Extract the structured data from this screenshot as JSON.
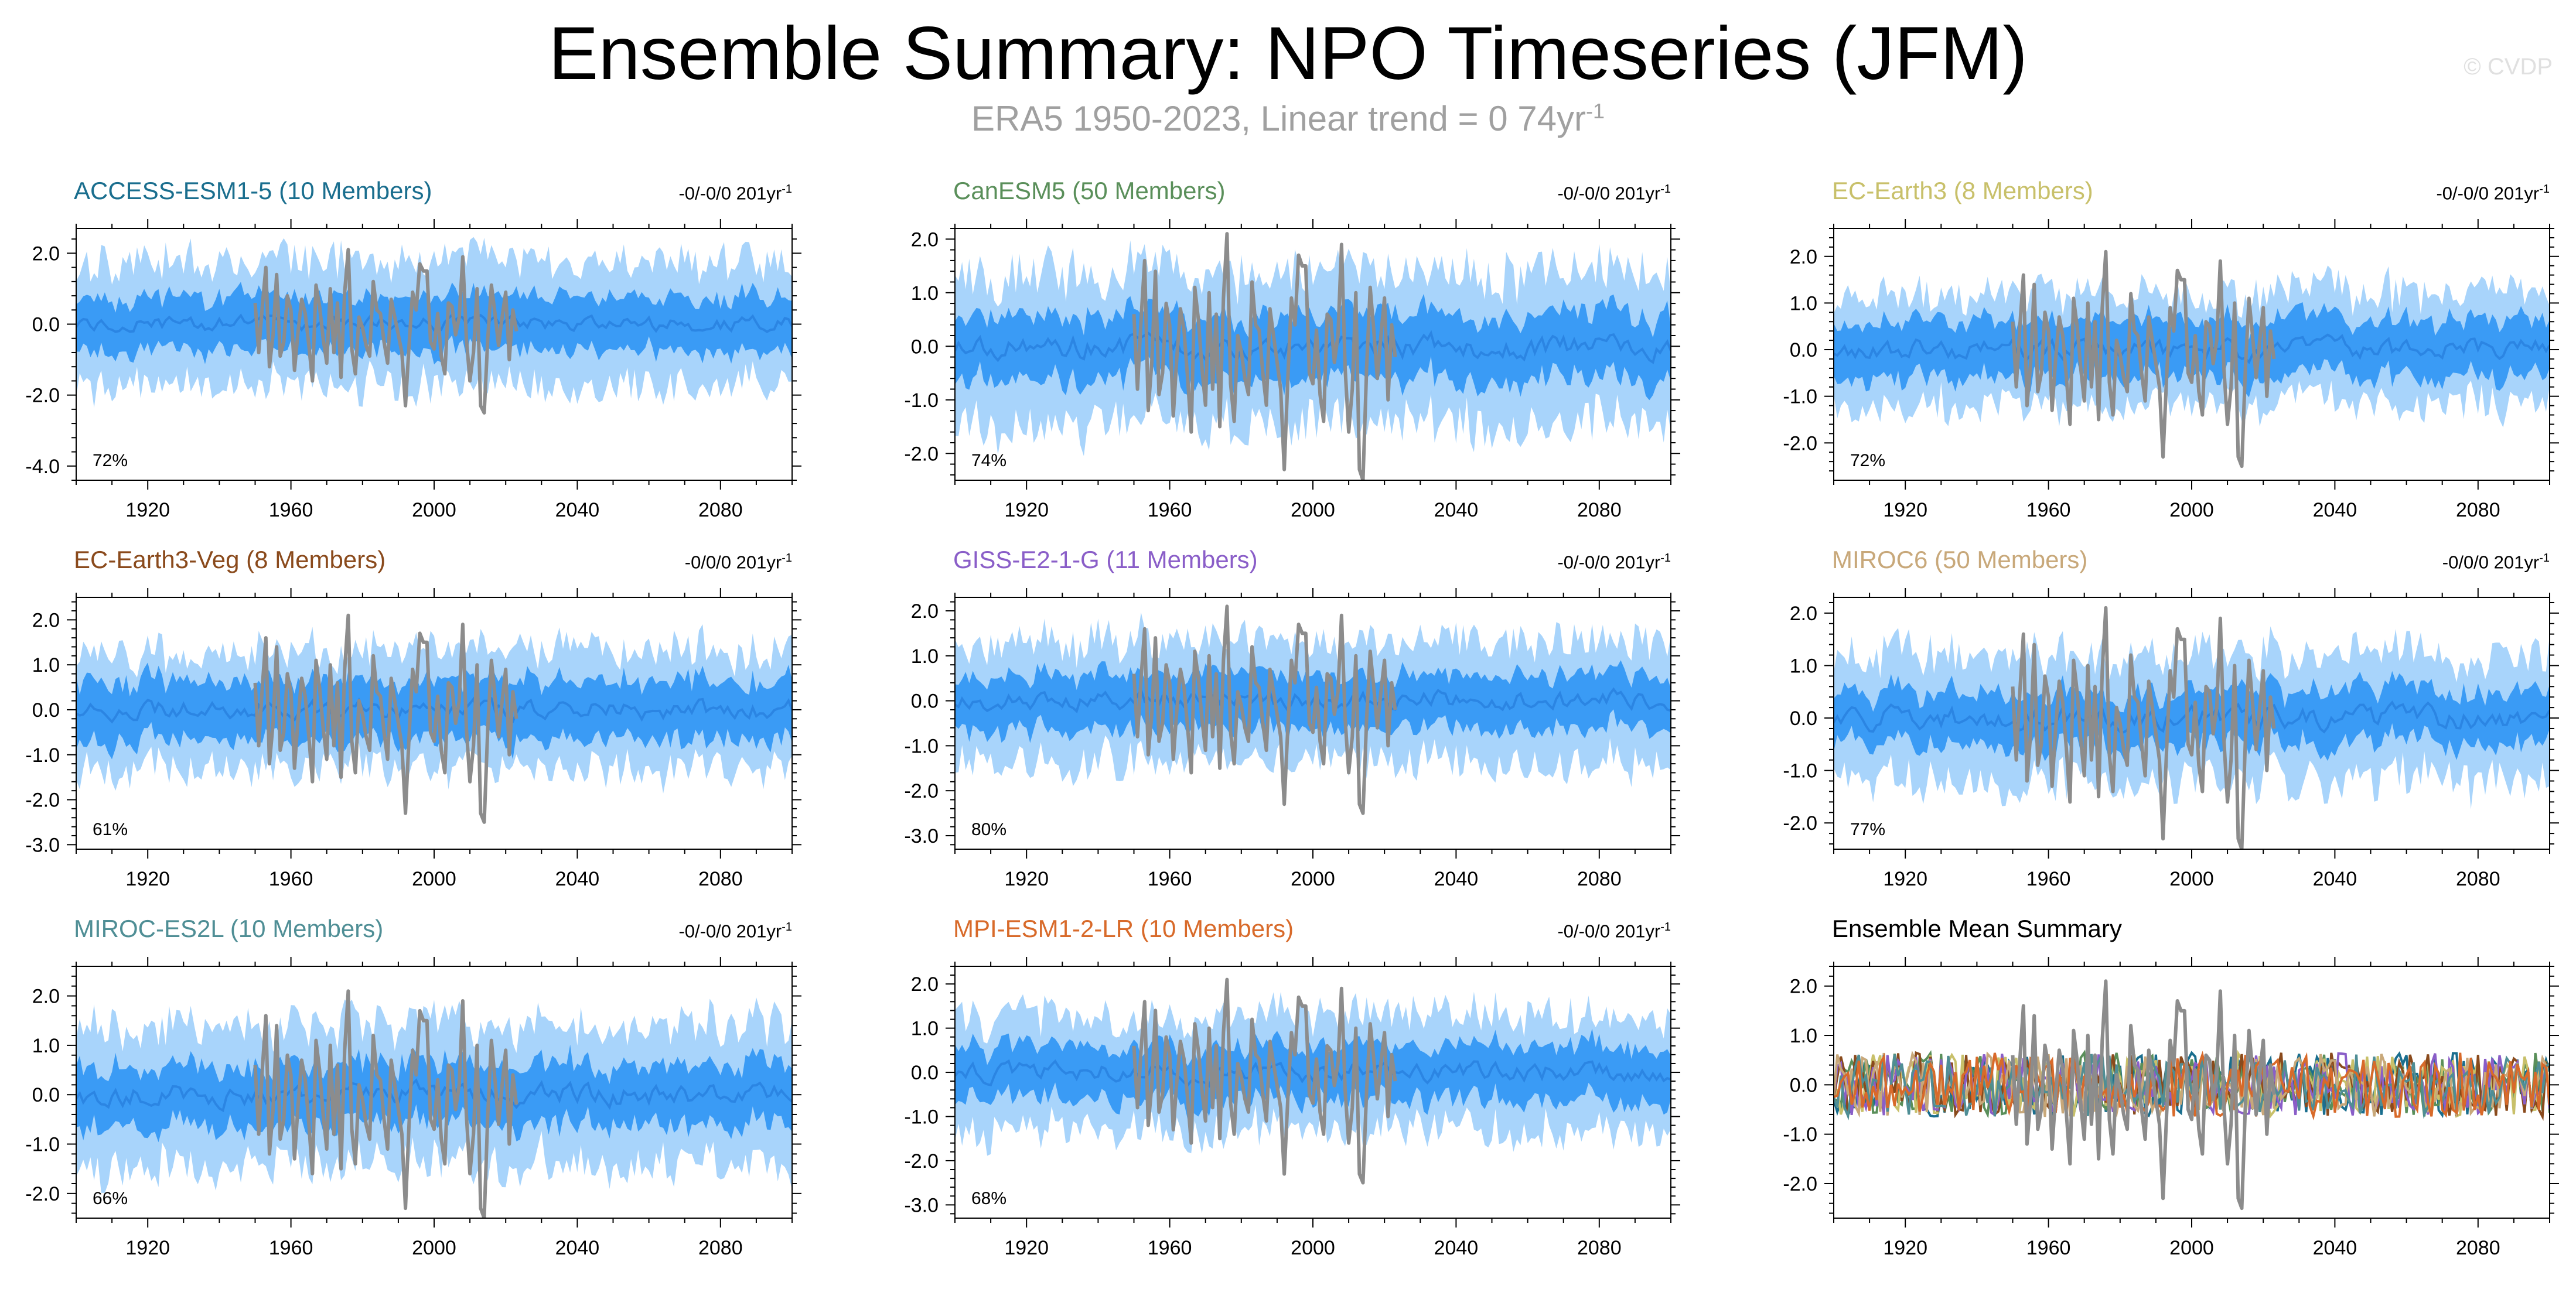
{
  "title": "Ensemble Summary: NPO Timeseries (JFM)",
  "subtitle": {
    "text": "ERA5 1950-2023, Linear trend = 0 74yr",
    "exponent": "-1"
  },
  "watermark": "© CVDP",
  "colors": {
    "inner_band": "#3a9bf5",
    "outer_band": "#a8d4fb",
    "ens_mean": "#2b85e3",
    "obs": "#8c8c8c"
  },
  "chart_data": [
    {
      "type": "area",
      "title": "ACCESS-ESM1-5 (10 Members)",
      "title_color": "#1a6e8e",
      "trend_text": "-0/-0/0 201yr",
      "trend_exp": "-1",
      "percent": "72%",
      "ylim": [
        -4.4,
        2.7
      ],
      "yticks": [
        2,
        0,
        -2,
        -4
      ],
      "ytick_labels": [
        "2.0",
        "0.0",
        "-2.0",
        "-4.0"
      ],
      "xlim": [
        1900,
        2100
      ],
      "xticks": [
        1920,
        1960,
        2000,
        2040,
        2080
      ],
      "inner_half": 0.75,
      "outer_half": 1.75,
      "seed": 11
    },
    {
      "type": "area",
      "title": "CanESM5 (50 Members)",
      "title_color": "#5a8f5a",
      "trend_text": "-0/-0/0 201yr",
      "trend_exp": "-1",
      "percent": "74%",
      "ylim": [
        -2.5,
        2.2
      ],
      "yticks": [
        2,
        1,
        0,
        -1,
        -2
      ],
      "ytick_labels": [
        "2.0",
        "1.0",
        "0.0",
        "-1.0",
        "-2.0"
      ],
      "xlim": [
        1900,
        2100
      ],
      "xticks": [
        1920,
        1960,
        2000,
        2040,
        2080
      ],
      "inner_half": 0.6,
      "outer_half": 1.4,
      "seed": 23
    },
    {
      "type": "area",
      "title": "EC-Earth3 (8 Members)",
      "title_color": "#c8c06a",
      "trend_text": "-0/-0/0 201yr",
      "trend_exp": "-1",
      "percent": "72%",
      "ylim": [
        -2.8,
        2.6
      ],
      "yticks": [
        2,
        1,
        0,
        -1,
        -2
      ],
      "ytick_labels": [
        "2.0",
        "1.0",
        "0.0",
        "-1.0",
        "-2.0"
      ],
      "xlim": [
        1900,
        2100
      ],
      "xticks": [
        1920,
        1960,
        2000,
        2040,
        2080
      ],
      "inner_half": 0.6,
      "outer_half": 1.2,
      "seed": 37
    },
    {
      "type": "area",
      "title": "EC-Earth3-Veg (8 Members)",
      "title_color": "#8a4a1c",
      "trend_text": "-0/0/0 201yr",
      "trend_exp": "-1",
      "percent": "61%",
      "ylim": [
        -3.1,
        2.5
      ],
      "yticks": [
        2,
        1,
        0,
        -1,
        -2,
        -3
      ],
      "ytick_labels": [
        "2.0",
        "1.0",
        "0.0",
        "-1.0",
        "-2.0",
        "-3.0"
      ],
      "xlim": [
        1900,
        2100
      ],
      "xticks": [
        1920,
        1960,
        2000,
        2040,
        2080
      ],
      "inner_half": 0.65,
      "outer_half": 1.3,
      "seed": 41
    },
    {
      "type": "area",
      "title": "GISS-E2-1-G (11 Members)",
      "title_color": "#8a5ec8",
      "trend_text": "-0/-0/0 201yr",
      "trend_exp": "-1",
      "percent": "80%",
      "ylim": [
        -3.3,
        2.3
      ],
      "yticks": [
        2,
        1,
        0,
        -1,
        -2,
        -3
      ],
      "ytick_labels": [
        "2.0",
        "1.0",
        "0.0",
        "-1.0",
        "-2.0",
        "-3.0"
      ],
      "xlim": [
        1900,
        2100
      ],
      "xticks": [
        1920,
        1960,
        2000,
        2040,
        2080
      ],
      "inner_half": 0.6,
      "outer_half": 1.35,
      "seed": 53
    },
    {
      "type": "area",
      "title": "MIROC6 (50 Members)",
      "title_color": "#c8a87a",
      "trend_text": "-0/0/0 201yr",
      "trend_exp": "-1",
      "percent": "77%",
      "ylim": [
        -2.5,
        2.3
      ],
      "yticks": [
        2,
        1,
        0,
        -1,
        -2
      ],
      "ytick_labels": [
        "2.0",
        "1.0",
        "0.0",
        "-1.0",
        "-2.0"
      ],
      "xlim": [
        1900,
        2100
      ],
      "xticks": [
        1920,
        1960,
        2000,
        2040,
        2080
      ],
      "inner_half": 0.5,
      "outer_half": 1.2,
      "seed": 67
    },
    {
      "type": "area",
      "title": "MIROC-ES2L (10 Members)",
      "title_color": "#4f8e95",
      "trend_text": "-0/-0/0 201yr",
      "trend_exp": "-1",
      "percent": "66%",
      "ylim": [
        -2.5,
        2.6
      ],
      "yticks": [
        2,
        1,
        0,
        -1,
        -2
      ],
      "ytick_labels": [
        "2.0",
        "1.0",
        "0.0",
        "-1.0",
        "-2.0"
      ],
      "xlim": [
        1900,
        2100
      ],
      "xticks": [
        1920,
        1960,
        2000,
        2040,
        2080
      ],
      "inner_half": 0.6,
      "outer_half": 1.4,
      "seed": 71
    },
    {
      "type": "area",
      "title": "MPI-ESM1-2-LR (10 Members)",
      "title_color": "#d86a2a",
      "trend_text": "-0/-0/0 201yr",
      "trend_exp": "-1",
      "percent": "68%",
      "ylim": [
        -3.3,
        2.4
      ],
      "yticks": [
        2,
        1,
        0,
        -1,
        -2,
        -3
      ],
      "ytick_labels": [
        "2.0",
        "1.0",
        "0.0",
        "-1.0",
        "-2.0",
        "-3.0"
      ],
      "xlim": [
        1900,
        2100
      ],
      "xticks": [
        1920,
        1960,
        2000,
        2040,
        2080
      ],
      "inner_half": 0.6,
      "outer_half": 1.3,
      "seed": 83
    },
    {
      "type": "line",
      "title": "Ensemble Mean Summary",
      "title_color": "#000000",
      "trend_text": "",
      "trend_exp": "",
      "percent": "",
      "ylim": [
        -2.7,
        2.4
      ],
      "yticks": [
        2,
        1,
        0,
        -1,
        -2
      ],
      "ytick_labels": [
        "2.0",
        "1.0",
        "0.0",
        "-1.0",
        "-2.0"
      ],
      "xlim": [
        1900,
        2100
      ],
      "xticks": [
        1920,
        1960,
        2000,
        2040,
        2080
      ],
      "seed": 97,
      "series_colors": [
        "#1a6e8e",
        "#5a8f5a",
        "#c8c06a",
        "#8a4a1c",
        "#8a5ec8",
        "#c8a87a",
        "#4f8e95",
        "#d86a2a"
      ]
    }
  ],
  "observations": {
    "name": "ERA5",
    "x_start": 1950,
    "x_end": 2023,
    "values": [
      0.6,
      -0.8,
      0.5,
      1.6,
      -1.2,
      -0.3,
      1.4,
      -0.9,
      -0.5,
      0.8,
      0.4,
      -1.3,
      -0.2,
      0.7,
      0.3,
      -0.6,
      -1.6,
      1.1,
      0.5,
      -0.4,
      -1.1,
      1.0,
      -0.8,
      0.6,
      -1.5,
      0.9,
      2.1,
      -0.7,
      -1.4,
      0.2,
      -0.1,
      -0.6,
      -0.9,
      1.2,
      0.4,
      0.3,
      -0.5,
      -1.1,
      0.7,
      0.2,
      -0.3,
      -0.8,
      -2.3,
      -0.6,
      0.9,
      0.4,
      1.7,
      1.5,
      1.5,
      -0.5,
      -0.7,
      0.3,
      -0.9,
      -1.4,
      0.6,
      0.5,
      -0.3,
      0.2,
      1.9,
      -0.4,
      -1.6,
      -0.8,
      1.0,
      -2.3,
      -2.5,
      -0.4,
      1.1,
      0.3,
      -0.6,
      0.2,
      0.9,
      -1.0,
      0.4,
      -0.2
    ]
  }
}
